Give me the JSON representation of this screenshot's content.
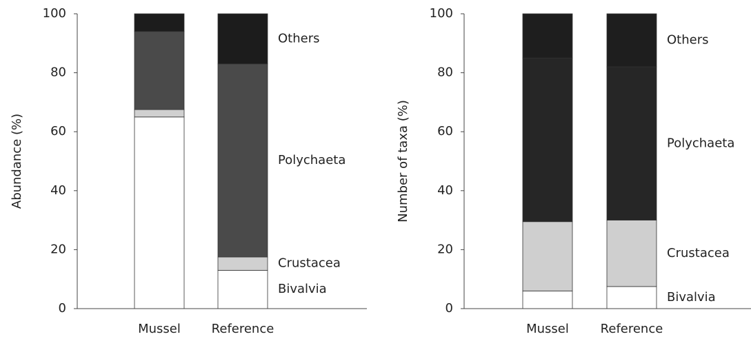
{
  "chart_data": [
    {
      "type": "bar",
      "stacked": true,
      "y_label": "Abundance (%)",
      "categories": [
        "Mussel",
        "Reference"
      ],
      "series": [
        {
          "name": "Bivalvia",
          "color": "#ffffff",
          "values": [
            65,
            13
          ]
        },
        {
          "name": "Crustacea",
          "color": "#d0d0d0",
          "values": [
            2.5,
            4.5
          ]
        },
        {
          "name": "Polychaeta",
          "color": "#4a4a4a",
          "values": [
            26.5,
            65.5
          ]
        },
        {
          "name": "Others",
          "color": "#1c1c1c",
          "values": [
            6,
            17
          ]
        }
      ],
      "ylim": [
        0,
        100
      ],
      "yticks": [
        0,
        20,
        40,
        60,
        80,
        100
      ]
    },
    {
      "type": "bar",
      "stacked": true,
      "y_label": "Number of taxa (%)",
      "categories": [
        "Mussel",
        "Reference"
      ],
      "series": [
        {
          "name": "Bivalvia",
          "color": "#ffffff",
          "values": [
            6,
            7.5
          ]
        },
        {
          "name": "Crustacea",
          "color": "#cfcfcf",
          "values": [
            23.5,
            22.5
          ]
        },
        {
          "name": "Polychaeta",
          "color": "#262626",
          "values": [
            55.5,
            52
          ]
        },
        {
          "name": "Others",
          "color": "#1e1e1e",
          "values": [
            15,
            18
          ]
        }
      ],
      "ylim": [
        0,
        100
      ],
      "yticks": [
        0,
        20,
        40,
        60,
        80,
        100
      ]
    }
  ]
}
